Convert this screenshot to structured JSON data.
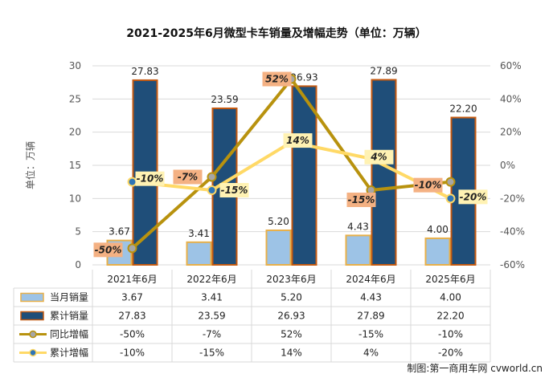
{
  "chart_data": {
    "type": "bar",
    "title": "2021-2025年6月微型卡车销量及增幅走势（单位：万辆）",
    "ylabel": "单位：万辆",
    "categories": [
      "2021年6月",
      "2022年6月",
      "2023年6月",
      "2024年6月",
      "2025年6月"
    ],
    "ylim": [
      0,
      30
    ],
    "y_ticks": [
      "0",
      "5",
      "10",
      "15",
      "20",
      "25",
      "30"
    ],
    "y2lim": [
      -60,
      60
    ],
    "y2_ticks": [
      "-60%",
      "-40%",
      "-20%",
      "0%",
      "20%",
      "40%",
      "60%"
    ],
    "series": [
      {
        "name": "当月销量",
        "kind": "bar",
        "axis": "left",
        "values": [
          3.67,
          3.41,
          5.2,
          4.43,
          4.0
        ],
        "labels": [
          "3.67",
          "3.41",
          "5.20",
          "4.43",
          "4.00"
        ],
        "color": "#9DC3E6",
        "border": "#E8B04A"
      },
      {
        "name": "累计销量",
        "kind": "bar",
        "axis": "left",
        "values": [
          27.83,
          23.59,
          26.93,
          27.89,
          22.2
        ],
        "labels": [
          "27.83",
          "23.59",
          "26.93",
          "27.89",
          "22.20"
        ],
        "color": "#1F4E79",
        "border": "#C55A11"
      },
      {
        "name": "同比增幅",
        "kind": "line",
        "axis": "right",
        "values": [
          -50,
          -7,
          52,
          -15,
          -10
        ],
        "labels": [
          "-50%",
          "-7%",
          "52%",
          "-15%",
          "-10%"
        ],
        "color": "#B8920E",
        "label_bg": "#F4B183"
      },
      {
        "name": "累计增幅",
        "kind": "line",
        "axis": "right",
        "values": [
          -10,
          -15,
          14,
          4,
          -20
        ],
        "labels": [
          "-10%",
          "-15%",
          "14%",
          "4%",
          "-20%"
        ],
        "color": "#FFD966",
        "label_bg": "#FFF2B3"
      }
    ],
    "grid": true,
    "legend": "table-below",
    "credit": "制图:第一商用车网 cvworld.cn"
  }
}
